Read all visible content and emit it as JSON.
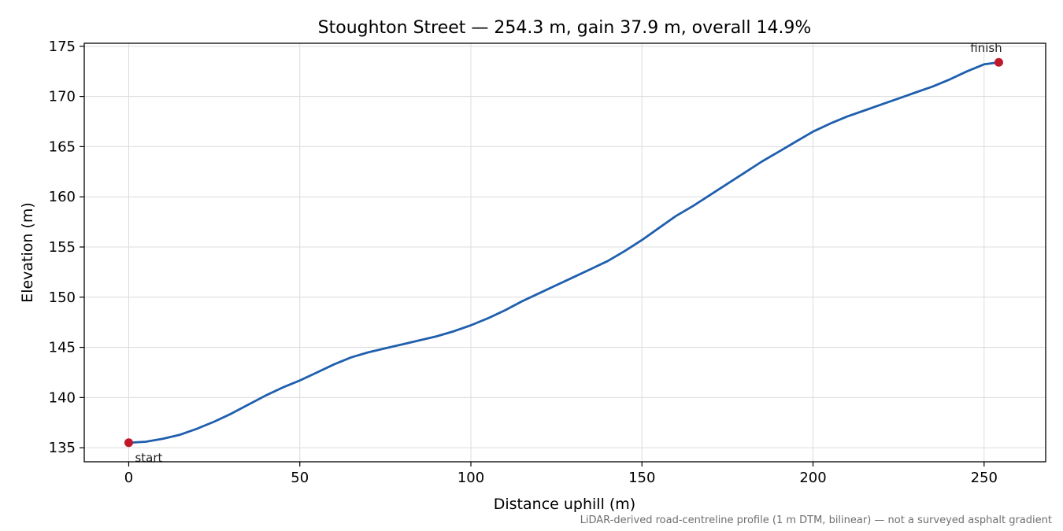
{
  "chart_data": {
    "type": "line",
    "title": "Stoughton Street — 254.3 m, gain 37.9 m, overall 14.9%",
    "xlabel": "Distance uphill (m)",
    "ylabel": "Elevation (m)",
    "xlim": [
      -13,
      268
    ],
    "ylim": [
      133.6,
      175.3
    ],
    "xticks": [
      0,
      50,
      100,
      150,
      200,
      250
    ],
    "yticks": [
      135,
      140,
      145,
      150,
      155,
      160,
      165,
      170,
      175
    ],
    "grid": true,
    "line_color": "#1f5fae",
    "marker_color": "#c0182a",
    "series": [
      {
        "x": [
          0,
          5,
          10,
          15,
          20,
          25,
          30,
          35,
          40,
          45,
          50,
          55,
          60,
          65,
          70,
          75,
          80,
          85,
          90,
          95,
          100,
          105,
          110,
          115,
          120,
          125,
          130,
          135,
          140,
          145,
          150,
          155,
          160,
          165,
          170,
          175,
          180,
          185,
          190,
          195,
          200,
          205,
          210,
          215,
          220,
          225,
          230,
          235,
          240,
          245,
          250,
          254.3
        ],
        "y": [
          135.5,
          135.6,
          135.9,
          136.3,
          136.9,
          137.6,
          138.4,
          139.3,
          140.2,
          141.0,
          141.7,
          142.5,
          143.3,
          144.0,
          144.5,
          144.9,
          145.3,
          145.7,
          146.1,
          146.6,
          147.2,
          147.9,
          148.7,
          149.6,
          150.4,
          151.2,
          152.0,
          152.8,
          153.6,
          154.6,
          155.7,
          156.9,
          158.1,
          159.1,
          160.2,
          161.3,
          162.4,
          163.5,
          164.5,
          165.5,
          166.5,
          167.3,
          168.0,
          168.6,
          169.2,
          169.8,
          170.4,
          171.0,
          171.7,
          172.5,
          173.2,
          173.4
        ]
      }
    ],
    "annotations": [
      {
        "label": "start",
        "x": 0,
        "y": 135.5
      },
      {
        "label": "finish",
        "x": 254.3,
        "y": 173.4
      }
    ],
    "footnote": "LiDAR-derived road-centreline profile (1 m DTM, bilinear) — not a surveyed asphalt gradient"
  }
}
